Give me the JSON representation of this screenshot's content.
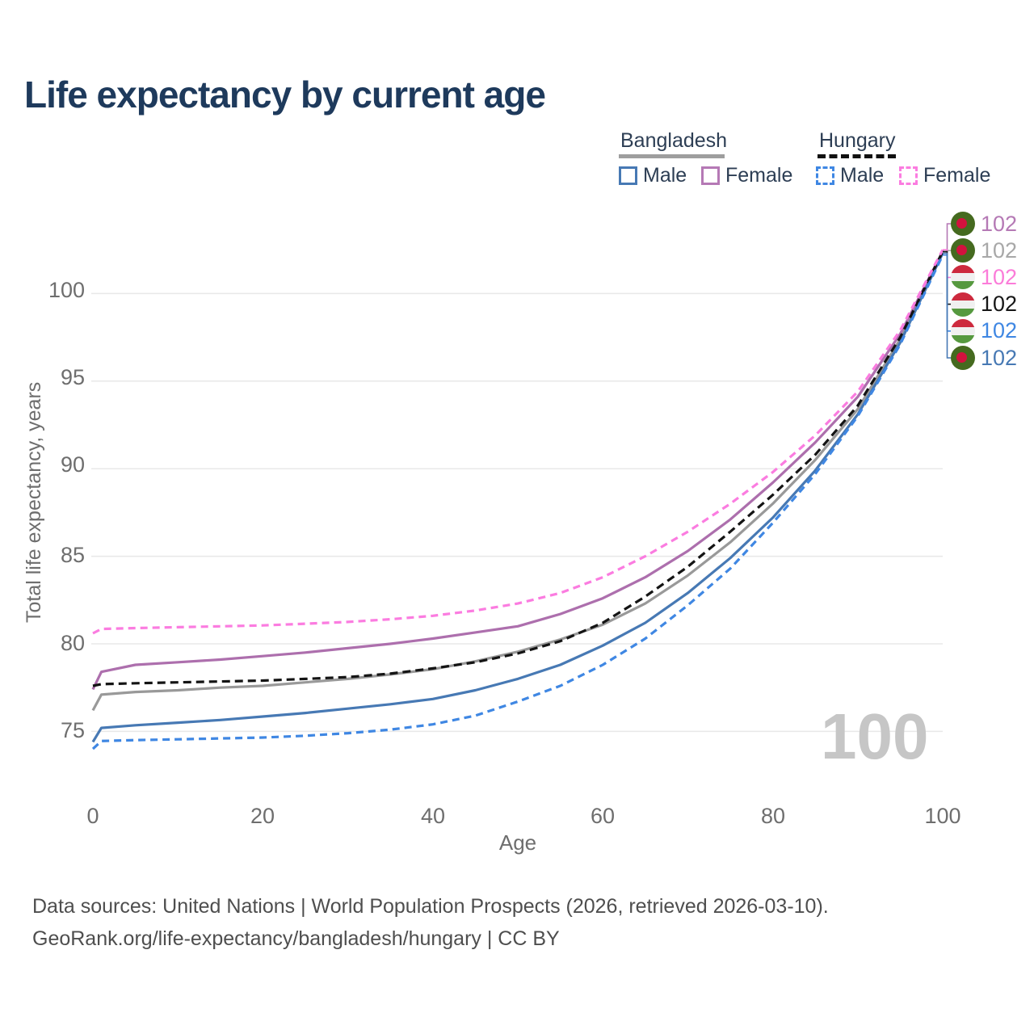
{
  "title": "Life expectancy by current age",
  "legend": {
    "groups": [
      {
        "label": "Bangladesh",
        "line_style": "solid",
        "underline_color": "#9e9e9e",
        "items": [
          {
            "label": "Male",
            "color": "#4779b4",
            "box_style": "solid"
          },
          {
            "label": "Female",
            "color": "#b579b5",
            "box_style": "solid"
          }
        ]
      },
      {
        "label": "Hungary",
        "line_style": "dashed",
        "underline_color": "#111111",
        "items": [
          {
            "label": "Male",
            "color": "#3f87e3",
            "box_style": "dashed"
          },
          {
            "label": "Female",
            "color": "#fb7ce0",
            "box_style": "dashed"
          }
        ]
      }
    ]
  },
  "axes": {
    "y": {
      "label": "Total life expectancy, years",
      "ticks": [
        "100",
        "95",
        "90",
        "85",
        "80",
        "75"
      ]
    },
    "x": {
      "label": "Age",
      "ticks": [
        "0",
        "20",
        "40",
        "60",
        "80",
        "100"
      ]
    }
  },
  "watermark": "100",
  "footer": {
    "line1": "Data sources: United Nations | World Population Prospects (2026, retrieved 2026-03-10).",
    "line2": "GeoRank.org/life-expectancy/bangladesh/hungary | CC BY"
  },
  "colors": {
    "title": "#1e3a5c",
    "gridline": "#e8e8e8",
    "axis_text": "#6e6e6e",
    "watermark": "#c6c6c6",
    "bangladesh_male": "#4779b4",
    "bangladesh_female": "#ad6fad",
    "bangladesh_total": "#999999",
    "hungary_male": "#3f87e3",
    "hungary_female": "#fb7ce0",
    "hungary_total": "#141414",
    "flag_bd_green": "#456a1f",
    "flag_bd_red": "#d2123e",
    "flag_hu_red": "#cd2a3e",
    "flag_hu_green": "#56993f"
  },
  "chart_data": {
    "type": "line",
    "title": "Life expectancy by current age",
    "xlabel": "Age",
    "ylabel": "Total life expectancy, years",
    "xlim": [
      0,
      100
    ],
    "ylim_shown": [
      75,
      100
    ],
    "x_ticks": [
      0,
      20,
      40,
      60,
      80,
      100
    ],
    "y_ticks": [
      100,
      95,
      90,
      85,
      80,
      75
    ],
    "grid": "horizontal",
    "legend_position": "top-right",
    "ages": [
      0,
      1,
      5,
      10,
      15,
      20,
      25,
      30,
      35,
      40,
      45,
      50,
      55,
      60,
      65,
      70,
      75,
      80,
      85,
      90,
      95,
      100
    ],
    "series": [
      {
        "id": "bd_total",
        "name": "Bangladesh Total",
        "color": "#999999",
        "dash": null,
        "values": [
          76.2,
          77.1,
          77.25,
          77.35,
          77.5,
          77.6,
          77.8,
          78.0,
          78.25,
          78.55,
          79.0,
          79.55,
          80.25,
          81.1,
          82.3,
          83.9,
          85.8,
          88.0,
          90.5,
          93.4,
          97.4,
          102.35
        ]
      },
      {
        "id": "bd_female",
        "name": "Bangladesh Female",
        "color": "#ad6fad",
        "dash": null,
        "values": [
          77.4,
          78.4,
          78.8,
          78.95,
          79.1,
          79.3,
          79.5,
          79.75,
          80.0,
          80.3,
          80.65,
          81.0,
          81.7,
          82.6,
          83.8,
          85.3,
          87.1,
          89.2,
          91.5,
          94.1,
          97.7,
          102.4
        ]
      },
      {
        "id": "bd_male",
        "name": "Bangladesh Male",
        "color": "#4779b4",
        "dash": null,
        "values": [
          74.4,
          75.2,
          75.35,
          75.5,
          75.65,
          75.85,
          76.05,
          76.3,
          76.55,
          76.85,
          77.35,
          78.0,
          78.8,
          79.9,
          81.2,
          82.9,
          84.9,
          87.2,
          89.9,
          93.1,
          97.2,
          102.3
        ]
      },
      {
        "id": "hu_total",
        "name": "Hungary Total",
        "color": "#141414",
        "dash": "10 6",
        "values": [
          77.6,
          77.7,
          77.75,
          77.8,
          77.85,
          77.9,
          78.0,
          78.1,
          78.3,
          78.6,
          78.95,
          79.45,
          80.15,
          81.2,
          82.7,
          84.4,
          86.4,
          88.5,
          90.8,
          93.6,
          97.5,
          102.4
        ]
      },
      {
        "id": "hu_male",
        "name": "Hungary Male",
        "color": "#3f87e3",
        "dash": "9 6",
        "values": [
          74.0,
          74.45,
          74.5,
          74.55,
          74.6,
          74.65,
          74.75,
          74.9,
          75.1,
          75.4,
          75.9,
          76.7,
          77.6,
          78.8,
          80.3,
          82.2,
          84.3,
          86.9,
          89.7,
          93.0,
          97.1,
          102.2
        ]
      },
      {
        "id": "hu_female",
        "name": "Hungary Female",
        "color": "#fb7ce0",
        "dash": "9 6",
        "values": [
          80.6,
          80.85,
          80.9,
          80.95,
          81.0,
          81.05,
          81.15,
          81.25,
          81.4,
          81.6,
          81.9,
          82.3,
          82.9,
          83.8,
          85.0,
          86.4,
          88.0,
          89.8,
          91.9,
          94.4,
          97.9,
          102.5
        ]
      }
    ],
    "end_labels": [
      {
        "value": "102",
        "series_id": "bd_female",
        "flag": "bd",
        "color": "#b579b5"
      },
      {
        "value": "102",
        "series_id": "bd_total",
        "flag": "bd",
        "color": "#a8a8a8"
      },
      {
        "value": "102",
        "series_id": "hu_female",
        "flag": "hu",
        "color": "#fb7cd9"
      },
      {
        "value": "102",
        "series_id": "hu_total",
        "flag": "hu",
        "color": "#161616"
      },
      {
        "value": "102",
        "series_id": "hu_male",
        "flag": "hu",
        "color": "#3f87e3"
      },
      {
        "value": "102",
        "series_id": "bd_male",
        "flag": "bd",
        "color": "#4779b4"
      }
    ]
  }
}
